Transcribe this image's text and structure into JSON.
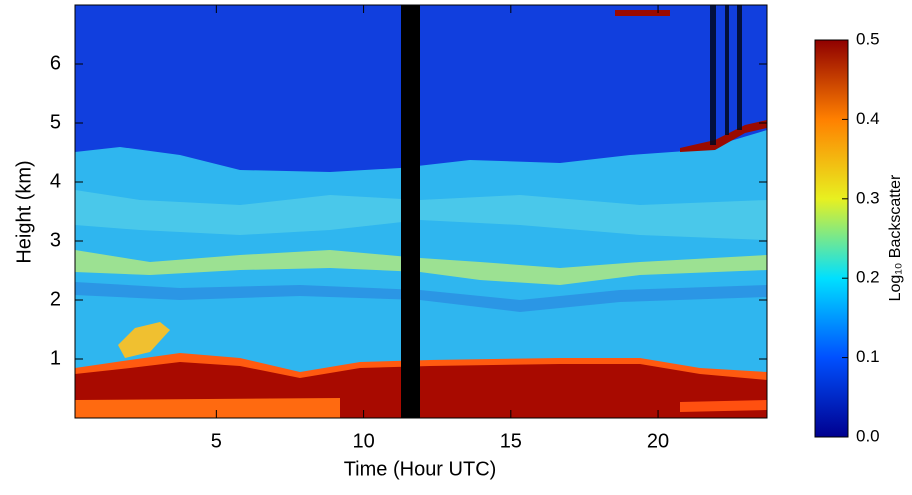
{
  "chart_data": {
    "type": "heatmap",
    "x_label": "Time (Hour UTC)",
    "y_label": "Height (km)",
    "xlim": [
      0.2,
      23.7
    ],
    "xticks": [
      5,
      10,
      15,
      20
    ],
    "ylim": [
      0,
      7
    ],
    "yticks": [
      1,
      2,
      3,
      4,
      5,
      6
    ],
    "colorbar": {
      "label": "Log₁₀ Backscatter",
      "lim": [
        0,
        0.5
      ],
      "ticks": [
        {
          "value": 0,
          "label": "0.0"
        },
        0.1,
        0.2,
        0.3,
        0.4,
        0.5
      ],
      "colors": [
        "#00008f",
        "#0050ff",
        "#00e0ff",
        "#e8f020",
        "#ff8000",
        "#8f0000"
      ]
    }
  }
}
